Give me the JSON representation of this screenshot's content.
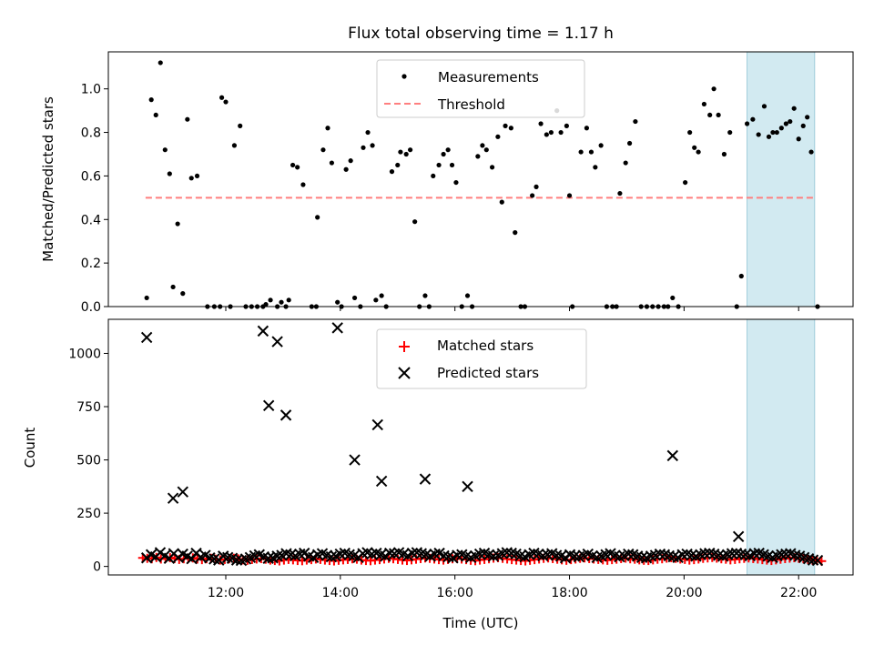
{
  "chart_data": [
    {
      "type": "scatter",
      "title": "Flux total observing time = 1.17 h",
      "xlabel": "",
      "ylabel": "Matched/Predicted stars",
      "xlim_hours": [
        9.95,
        22.95
      ],
      "ylim": [
        0,
        1.17
      ],
      "yticks": [
        0.0,
        0.2,
        0.4,
        0.6,
        0.8,
        1.0
      ],
      "ytick_labels": [
        "0.0",
        "0.2",
        "0.4",
        "0.6",
        "0.8",
        "1.0"
      ],
      "highlight_span_hours": [
        21.1,
        22.28
      ],
      "highlight_color": "#add8e6",
      "legend_position": "upper center",
      "legend": [
        "Measurements",
        "Threshold"
      ],
      "threshold": {
        "name": "Threshold",
        "value": 0.5,
        "x_from": 10.6,
        "x_to": 22.28,
        "color": "#ff7f7f",
        "style": "dashed"
      },
      "series": [
        {
          "name": "Measurements",
          "color": "#000000",
          "points": [
            [
              10.62,
              0.04
            ],
            [
              10.7,
              0.95
            ],
            [
              10.78,
              0.88
            ],
            [
              10.86,
              1.12
            ],
            [
              10.94,
              0.72
            ],
            [
              11.02,
              0.61
            ],
            [
              11.08,
              0.09
            ],
            [
              11.16,
              0.38
            ],
            [
              11.25,
              0.06
            ],
            [
              11.33,
              0.86
            ],
            [
              11.4,
              0.59
            ],
            [
              11.5,
              0.6
            ],
            [
              11.68,
              0.0
            ],
            [
              11.8,
              0.0
            ],
            [
              11.9,
              0.0
            ],
            [
              11.93,
              0.96
            ],
            [
              12.0,
              0.94
            ],
            [
              12.08,
              0.0
            ],
            [
              12.15,
              0.74
            ],
            [
              12.25,
              0.83
            ],
            [
              12.35,
              0.0
            ],
            [
              12.45,
              0.0
            ],
            [
              12.55,
              0.0
            ],
            [
              12.65,
              0.0
            ],
            [
              12.7,
              0.01
            ],
            [
              12.78,
              0.03
            ],
            [
              12.9,
              0.0
            ],
            [
              12.97,
              0.02
            ],
            [
              13.05,
              0.0
            ],
            [
              13.1,
              0.03
            ],
            [
              13.17,
              0.65
            ],
            [
              13.25,
              0.64
            ],
            [
              13.35,
              0.56
            ],
            [
              13.5,
              0.0
            ],
            [
              13.58,
              0.0
            ],
            [
              13.6,
              0.41
            ],
            [
              13.7,
              0.72
            ],
            [
              13.78,
              0.82
            ],
            [
              13.85,
              0.66
            ],
            [
              13.95,
              0.02
            ],
            [
              14.02,
              0.0
            ],
            [
              14.1,
              0.63
            ],
            [
              14.18,
              0.67
            ],
            [
              14.25,
              0.04
            ],
            [
              14.35,
              0.0
            ],
            [
              14.4,
              0.73
            ],
            [
              14.48,
              0.8
            ],
            [
              14.56,
              0.74
            ],
            [
              14.62,
              0.03
            ],
            [
              14.72,
              0.05
            ],
            [
              14.8,
              0.0
            ],
            [
              14.9,
              0.62
            ],
            [
              15.0,
              0.65
            ],
            [
              15.05,
              0.71
            ],
            [
              15.15,
              0.7
            ],
            [
              15.22,
              0.72
            ],
            [
              15.3,
              0.39
            ],
            [
              15.38,
              0.0
            ],
            [
              15.48,
              0.05
            ],
            [
              15.55,
              0.0
            ],
            [
              15.62,
              0.6
            ],
            [
              15.72,
              0.65
            ],
            [
              15.8,
              0.7
            ],
            [
              15.88,
              0.72
            ],
            [
              15.95,
              0.65
            ],
            [
              16.02,
              0.57
            ],
            [
              16.12,
              0.0
            ],
            [
              16.22,
              0.05
            ],
            [
              16.3,
              0.0
            ],
            [
              16.4,
              0.69
            ],
            [
              16.48,
              0.74
            ],
            [
              16.55,
              0.72
            ],
            [
              16.65,
              0.64
            ],
            [
              16.75,
              0.78
            ],
            [
              16.82,
              0.48
            ],
            [
              16.88,
              0.83
            ],
            [
              16.98,
              0.82
            ],
            [
              17.05,
              0.34
            ],
            [
              17.15,
              0.0
            ],
            [
              17.22,
              0.0
            ],
            [
              17.35,
              0.51
            ],
            [
              17.42,
              0.55
            ],
            [
              17.5,
              0.84
            ],
            [
              17.6,
              0.79
            ],
            [
              17.68,
              0.8
            ],
            [
              17.78,
              0.9
            ],
            [
              17.85,
              0.8
            ],
            [
              17.95,
              0.83
            ],
            [
              18.0,
              0.51
            ],
            [
              18.05,
              0.0
            ],
            [
              18.2,
              0.71
            ],
            [
              18.3,
              0.82
            ],
            [
              18.38,
              0.71
            ],
            [
              18.45,
              0.64
            ],
            [
              18.55,
              0.74
            ],
            [
              18.65,
              0.0
            ],
            [
              18.75,
              0.0
            ],
            [
              18.82,
              0.0
            ],
            [
              18.88,
              0.52
            ],
            [
              18.98,
              0.66
            ],
            [
              19.05,
              0.75
            ],
            [
              19.15,
              0.85
            ],
            [
              19.25,
              0.0
            ],
            [
              19.35,
              0.0
            ],
            [
              19.45,
              0.0
            ],
            [
              19.55,
              0.0
            ],
            [
              19.65,
              0.0
            ],
            [
              19.72,
              0.0
            ],
            [
              19.8,
              0.04
            ],
            [
              19.9,
              0.0
            ],
            [
              20.02,
              0.57
            ],
            [
              20.1,
              0.8
            ],
            [
              20.18,
              0.73
            ],
            [
              20.25,
              0.71
            ],
            [
              20.35,
              0.93
            ],
            [
              20.45,
              0.88
            ],
            [
              20.52,
              1.0
            ],
            [
              20.6,
              0.88
            ],
            [
              20.7,
              0.7
            ],
            [
              20.8,
              0.8
            ],
            [
              20.92,
              0.0
            ],
            [
              21.0,
              0.14
            ],
            [
              21.1,
              0.84
            ],
            [
              21.2,
              0.86
            ],
            [
              21.3,
              0.79
            ],
            [
              21.4,
              0.92
            ],
            [
              21.48,
              0.78
            ],
            [
              21.55,
              0.8
            ],
            [
              21.62,
              0.8
            ],
            [
              21.7,
              0.82
            ],
            [
              21.78,
              0.84
            ],
            [
              21.85,
              0.85
            ],
            [
              21.92,
              0.91
            ],
            [
              22.0,
              0.77
            ],
            [
              22.08,
              0.83
            ],
            [
              22.15,
              0.87
            ],
            [
              22.22,
              0.71
            ],
            [
              22.33,
              0.0
            ]
          ]
        }
      ]
    },
    {
      "type": "scatter",
      "title": "",
      "xlabel": "Time (UTC)",
      "ylabel": "Count",
      "xlim_hours": [
        9.95,
        22.95
      ],
      "ylim": [
        -40,
        1160
      ],
      "xticks_hours": [
        12,
        14,
        16,
        18,
        20,
        22
      ],
      "xtick_labels": [
        "12:00",
        "14:00",
        "16:00",
        "18:00",
        "20:00",
        "22:00"
      ],
      "yticks": [
        0,
        250,
        500,
        750,
        1000
      ],
      "ytick_labels": [
        "0",
        "250",
        "500",
        "750",
        "1000"
      ],
      "highlight_span_hours": [
        21.1,
        22.28
      ],
      "highlight_color": "#add8e6",
      "legend_position": "upper center",
      "legend": [
        "Matched stars",
        "Predicted stars"
      ],
      "series": [
        {
          "name": "Matched stars",
          "marker": "+",
          "color": "#ff0000",
          "x_start": 10.55,
          "x_end": 22.4,
          "count": 150,
          "values": [
            40,
            38,
            36,
            42,
            35,
            38,
            41,
            37,
            33,
            36,
            39,
            40,
            35,
            32,
            36,
            38,
            34,
            30,
            33,
            36,
            38,
            35,
            31,
            29,
            33,
            35,
            37,
            34,
            30,
            28,
            26,
            30,
            33,
            31,
            28,
            27,
            30,
            32,
            35,
            33,
            30,
            28,
            26,
            29,
            31,
            33,
            36,
            34,
            30,
            28,
            27,
            30,
            32,
            35,
            38,
            36,
            33,
            30,
            28,
            31,
            34,
            37,
            40,
            38,
            35,
            32,
            30,
            33,
            36,
            38,
            35,
            32,
            29,
            27,
            30,
            33,
            36,
            39,
            41,
            38,
            35,
            32,
            30,
            28,
            26,
            29,
            32,
            35,
            38,
            40,
            37,
            34,
            31,
            29,
            32,
            35,
            38,
            40,
            37,
            35,
            33,
            31,
            29,
            32,
            34,
            37,
            39,
            36,
            34,
            31,
            29,
            28,
            31,
            34,
            36,
            39,
            41,
            38,
            35,
            33,
            30,
            32,
            35,
            38,
            40,
            42,
            39,
            36,
            34,
            31,
            33,
            36,
            38,
            40,
            37,
            35,
            32,
            30,
            28,
            31,
            34,
            37,
            39,
            41,
            38,
            36,
            33,
            30,
            28,
            25
          ]
        },
        {
          "name": "Predicted stars",
          "marker": "x",
          "color": "#000000",
          "outliers": [
            [
              10.62,
              1075
            ],
            [
              11.08,
              320
            ],
            [
              11.25,
              350
            ],
            [
              12.65,
              1105
            ],
            [
              12.75,
              755
            ],
            [
              12.9,
              1055
            ],
            [
              13.05,
              710
            ],
            [
              13.95,
              1120
            ],
            [
              14.25,
              500
            ],
            [
              14.65,
              665
            ],
            [
              14.72,
              400
            ],
            [
              15.48,
              410
            ],
            [
              16.22,
              375
            ],
            [
              19.8,
              520
            ],
            [
              20.95,
              140
            ]
          ],
          "baseline": {
            "x_start": 10.62,
            "x_end": 22.33,
            "count": 150,
            "values": [
              40,
              55,
              45,
              65,
              50,
              38,
              60,
              42,
              58,
              48,
              36,
              62,
              44,
              52,
              40,
              35,
              30,
              48,
              42,
              38,
              30,
              28,
              35,
              42,
              50,
              55,
              45,
              38,
              40,
              48,
              52,
              60,
              55,
              50,
              58,
              62,
              48,
              42,
              55,
              60,
              52,
              45,
              48,
              58,
              62,
              55,
              50,
              42,
              60,
              65,
              58,
              62,
              55,
              48,
              62,
              60,
              65,
              58,
              50,
              62,
              65,
              60,
              55,
              48,
              58,
              62,
              50,
              45,
              40,
              52,
              55,
              48,
              42,
              50,
              58,
              62,
              55,
              48,
              52,
              60,
              65,
              62,
              58,
              50,
              45,
              55,
              62,
              58,
              50,
              55,
              60,
              52,
              48,
              40,
              55,
              48,
              45,
              52,
              58,
              50,
              42,
              48,
              55,
              60,
              52,
              45,
              50,
              58,
              55,
              48,
              42,
              40,
              48,
              52,
              58,
              55,
              50,
              45,
              42,
              55,
              58,
              52,
              48,
              55,
              60,
              62,
              58,
              52,
              48,
              55,
              60,
              62,
              58,
              55,
              50,
              60,
              62,
              55,
              48,
              42,
              50,
              55,
              58,
              60,
              52,
              48,
              42,
              36,
              30,
              28
            ]
          }
        }
      ]
    }
  ]
}
